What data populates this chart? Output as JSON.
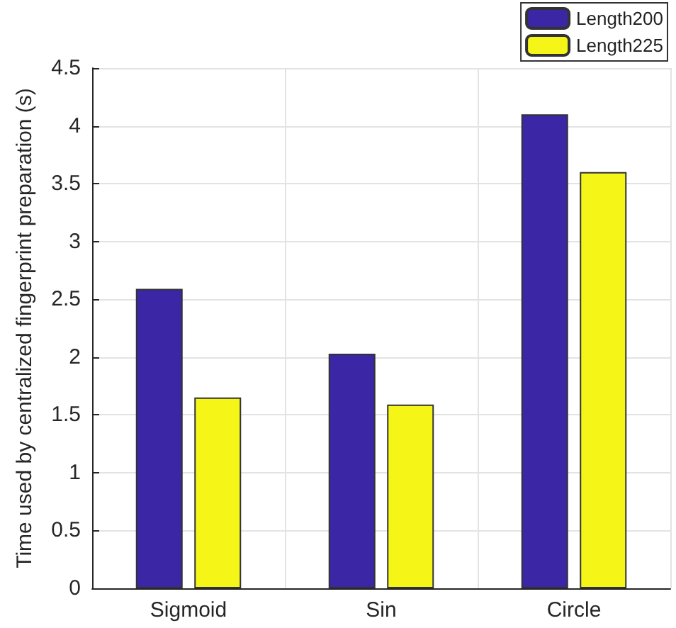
{
  "chart_data": {
    "type": "bar",
    "ylabel": "Time used by centralized fingerprint preparation (s)",
    "categories": [
      "Sigmoid",
      "Sin",
      "Circle"
    ],
    "series": [
      {
        "name": "Length200",
        "color": "#3b27a5",
        "values": [
          2.59,
          2.03,
          4.1
        ]
      },
      {
        "name": "Length225",
        "color": "#f5f518",
        "values": [
          1.65,
          1.59,
          3.6
        ]
      }
    ],
    "ylim": [
      0,
      4.5
    ],
    "yticks": [
      0,
      0.5,
      1,
      1.5,
      2,
      2.5,
      3,
      3.5,
      4,
      4.5
    ],
    "grid": true,
    "legend": "top right"
  }
}
